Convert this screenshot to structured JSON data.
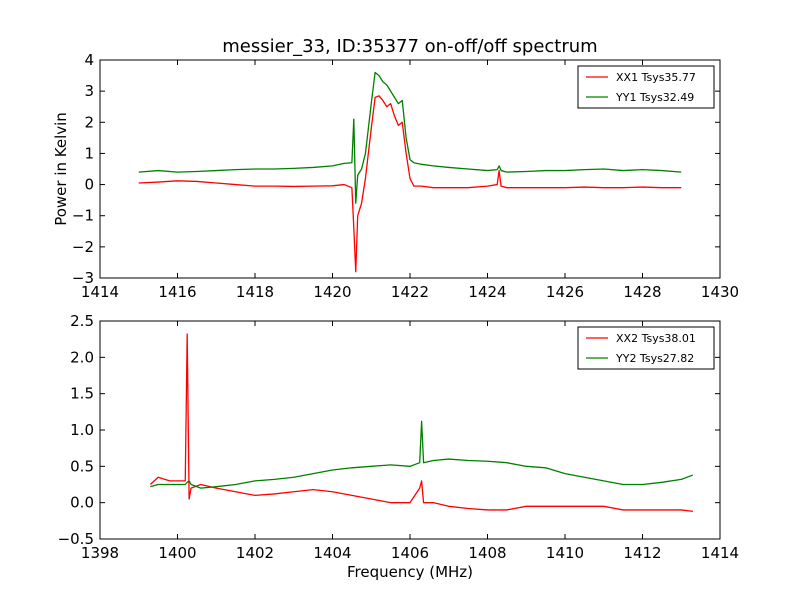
{
  "chart_data": [
    {
      "type": "line",
      "title": "messier_33, ID:35377 on-off/off spectrum",
      "xlabel": "",
      "ylabel": "Power in Kelvin",
      "xlim": [
        1414,
        1430
      ],
      "ylim": [
        -3,
        4
      ],
      "xticks": [
        1414,
        1416,
        1418,
        1420,
        1422,
        1424,
        1426,
        1428,
        1430
      ],
      "yticks": [
        -3,
        -2,
        -1,
        0,
        1,
        2,
        3,
        4
      ],
      "legend_position": "top-right",
      "grid": false,
      "series": [
        {
          "name": "XX1 Tsys35.77",
          "color": "#ff0000",
          "x": [
            1415.0,
            1415.5,
            1416.0,
            1416.5,
            1417.0,
            1417.5,
            1418.0,
            1418.5,
            1419.0,
            1419.5,
            1420.0,
            1420.3,
            1420.5,
            1420.55,
            1420.6,
            1420.65,
            1420.75,
            1420.85,
            1421.0,
            1421.1,
            1421.2,
            1421.3,
            1421.4,
            1421.5,
            1421.6,
            1421.7,
            1421.8,
            1421.9,
            1422.0,
            1422.1,
            1422.3,
            1422.6,
            1423.0,
            1423.5,
            1424.0,
            1424.25,
            1424.3,
            1424.35,
            1424.5,
            1425.0,
            1425.5,
            1426.0,
            1426.5,
            1427.0,
            1427.5,
            1428.0,
            1428.5,
            1429.0
          ],
          "values": [
            0.05,
            0.08,
            0.12,
            0.1,
            0.05,
            0.0,
            -0.05,
            -0.05,
            -0.06,
            -0.05,
            -0.04,
            0.0,
            -0.1,
            -1.4,
            -2.8,
            -1.0,
            -0.6,
            0.2,
            1.8,
            2.8,
            2.85,
            2.7,
            2.5,
            2.6,
            2.2,
            1.9,
            2.0,
            1.0,
            0.2,
            -0.05,
            -0.05,
            -0.1,
            -0.1,
            -0.1,
            -0.05,
            0.0,
            0.45,
            -0.05,
            -0.1,
            -0.1,
            -0.1,
            -0.1,
            -0.08,
            -0.1,
            -0.1,
            -0.08,
            -0.1,
            -0.1
          ]
        },
        {
          "name": "YY1 Tsys32.49",
          "color": "#008000",
          "x": [
            1415.0,
            1415.5,
            1416.0,
            1416.5,
            1417.0,
            1417.5,
            1418.0,
            1418.5,
            1419.0,
            1419.5,
            1420.0,
            1420.3,
            1420.5,
            1420.55,
            1420.6,
            1420.65,
            1420.75,
            1420.85,
            1421.0,
            1421.1,
            1421.2,
            1421.3,
            1421.4,
            1421.5,
            1421.6,
            1421.7,
            1421.8,
            1421.9,
            1422.0,
            1422.1,
            1422.3,
            1422.6,
            1423.0,
            1423.5,
            1424.0,
            1424.25,
            1424.3,
            1424.35,
            1424.5,
            1425.0,
            1425.5,
            1426.0,
            1426.5,
            1427.0,
            1427.5,
            1428.0,
            1428.5,
            1429.0
          ],
          "values": [
            0.4,
            0.45,
            0.4,
            0.42,
            0.45,
            0.48,
            0.5,
            0.5,
            0.52,
            0.55,
            0.6,
            0.68,
            0.7,
            2.1,
            -0.6,
            0.3,
            0.5,
            1.0,
            2.6,
            3.6,
            3.5,
            3.3,
            3.2,
            3.0,
            2.8,
            2.6,
            2.7,
            1.5,
            0.8,
            0.7,
            0.65,
            0.6,
            0.55,
            0.5,
            0.45,
            0.48,
            0.6,
            0.45,
            0.4,
            0.42,
            0.45,
            0.45,
            0.48,
            0.5,
            0.45,
            0.48,
            0.45,
            0.4
          ]
        }
      ]
    },
    {
      "type": "line",
      "title": "",
      "xlabel": "Frequency (MHz)",
      "ylabel": "",
      "xlim": [
        1398,
        1414
      ],
      "ylim": [
        -0.5,
        2.5
      ],
      "xticks": [
        1398,
        1400,
        1402,
        1404,
        1406,
        1408,
        1410,
        1412,
        1414
      ],
      "yticks": [
        -0.5,
        0.0,
        0.5,
        1.0,
        1.5,
        2.0,
        2.5
      ],
      "legend_position": "top-right",
      "grid": false,
      "series": [
        {
          "name": "XX2 Tsys38.01",
          "color": "#ff0000",
          "x": [
            1399.3,
            1399.5,
            1399.8,
            1400.0,
            1400.2,
            1400.25,
            1400.3,
            1400.35,
            1400.6,
            1401.0,
            1401.5,
            1402.0,
            1402.5,
            1403.0,
            1403.5,
            1404.0,
            1404.5,
            1405.0,
            1405.5,
            1406.0,
            1406.25,
            1406.3,
            1406.35,
            1406.6,
            1407.0,
            1407.5,
            1408.0,
            1408.5,
            1409.0,
            1409.5,
            1410.0,
            1410.5,
            1411.0,
            1411.5,
            1412.0,
            1412.5,
            1413.0,
            1413.3
          ],
          "values": [
            0.25,
            0.35,
            0.3,
            0.3,
            0.3,
            2.32,
            0.05,
            0.2,
            0.25,
            0.2,
            0.15,
            0.1,
            0.12,
            0.15,
            0.18,
            0.15,
            0.1,
            0.05,
            0.0,
            0.0,
            0.2,
            0.3,
            0.0,
            0.0,
            -0.05,
            -0.08,
            -0.1,
            -0.1,
            -0.05,
            -0.05,
            -0.05,
            -0.05,
            -0.05,
            -0.1,
            -0.1,
            -0.1,
            -0.1,
            -0.12
          ]
        },
        {
          "name": "YY2 Tsys27.82",
          "color": "#008000",
          "x": [
            1399.3,
            1399.5,
            1399.8,
            1400.0,
            1400.2,
            1400.25,
            1400.3,
            1400.35,
            1400.6,
            1401.0,
            1401.5,
            1402.0,
            1402.5,
            1403.0,
            1403.5,
            1404.0,
            1404.5,
            1405.0,
            1405.5,
            1406.0,
            1406.25,
            1406.3,
            1406.35,
            1406.6,
            1407.0,
            1407.5,
            1408.0,
            1408.5,
            1409.0,
            1409.5,
            1410.0,
            1410.5,
            1411.0,
            1411.5,
            1412.0,
            1412.5,
            1413.0,
            1413.3
          ],
          "values": [
            0.22,
            0.25,
            0.25,
            0.25,
            0.25,
            0.28,
            0.3,
            0.25,
            0.2,
            0.22,
            0.25,
            0.3,
            0.32,
            0.35,
            0.4,
            0.45,
            0.48,
            0.5,
            0.52,
            0.5,
            0.55,
            1.12,
            0.55,
            0.58,
            0.6,
            0.58,
            0.57,
            0.55,
            0.5,
            0.48,
            0.4,
            0.35,
            0.3,
            0.25,
            0.25,
            0.28,
            0.32,
            0.38
          ]
        }
      ]
    }
  ]
}
